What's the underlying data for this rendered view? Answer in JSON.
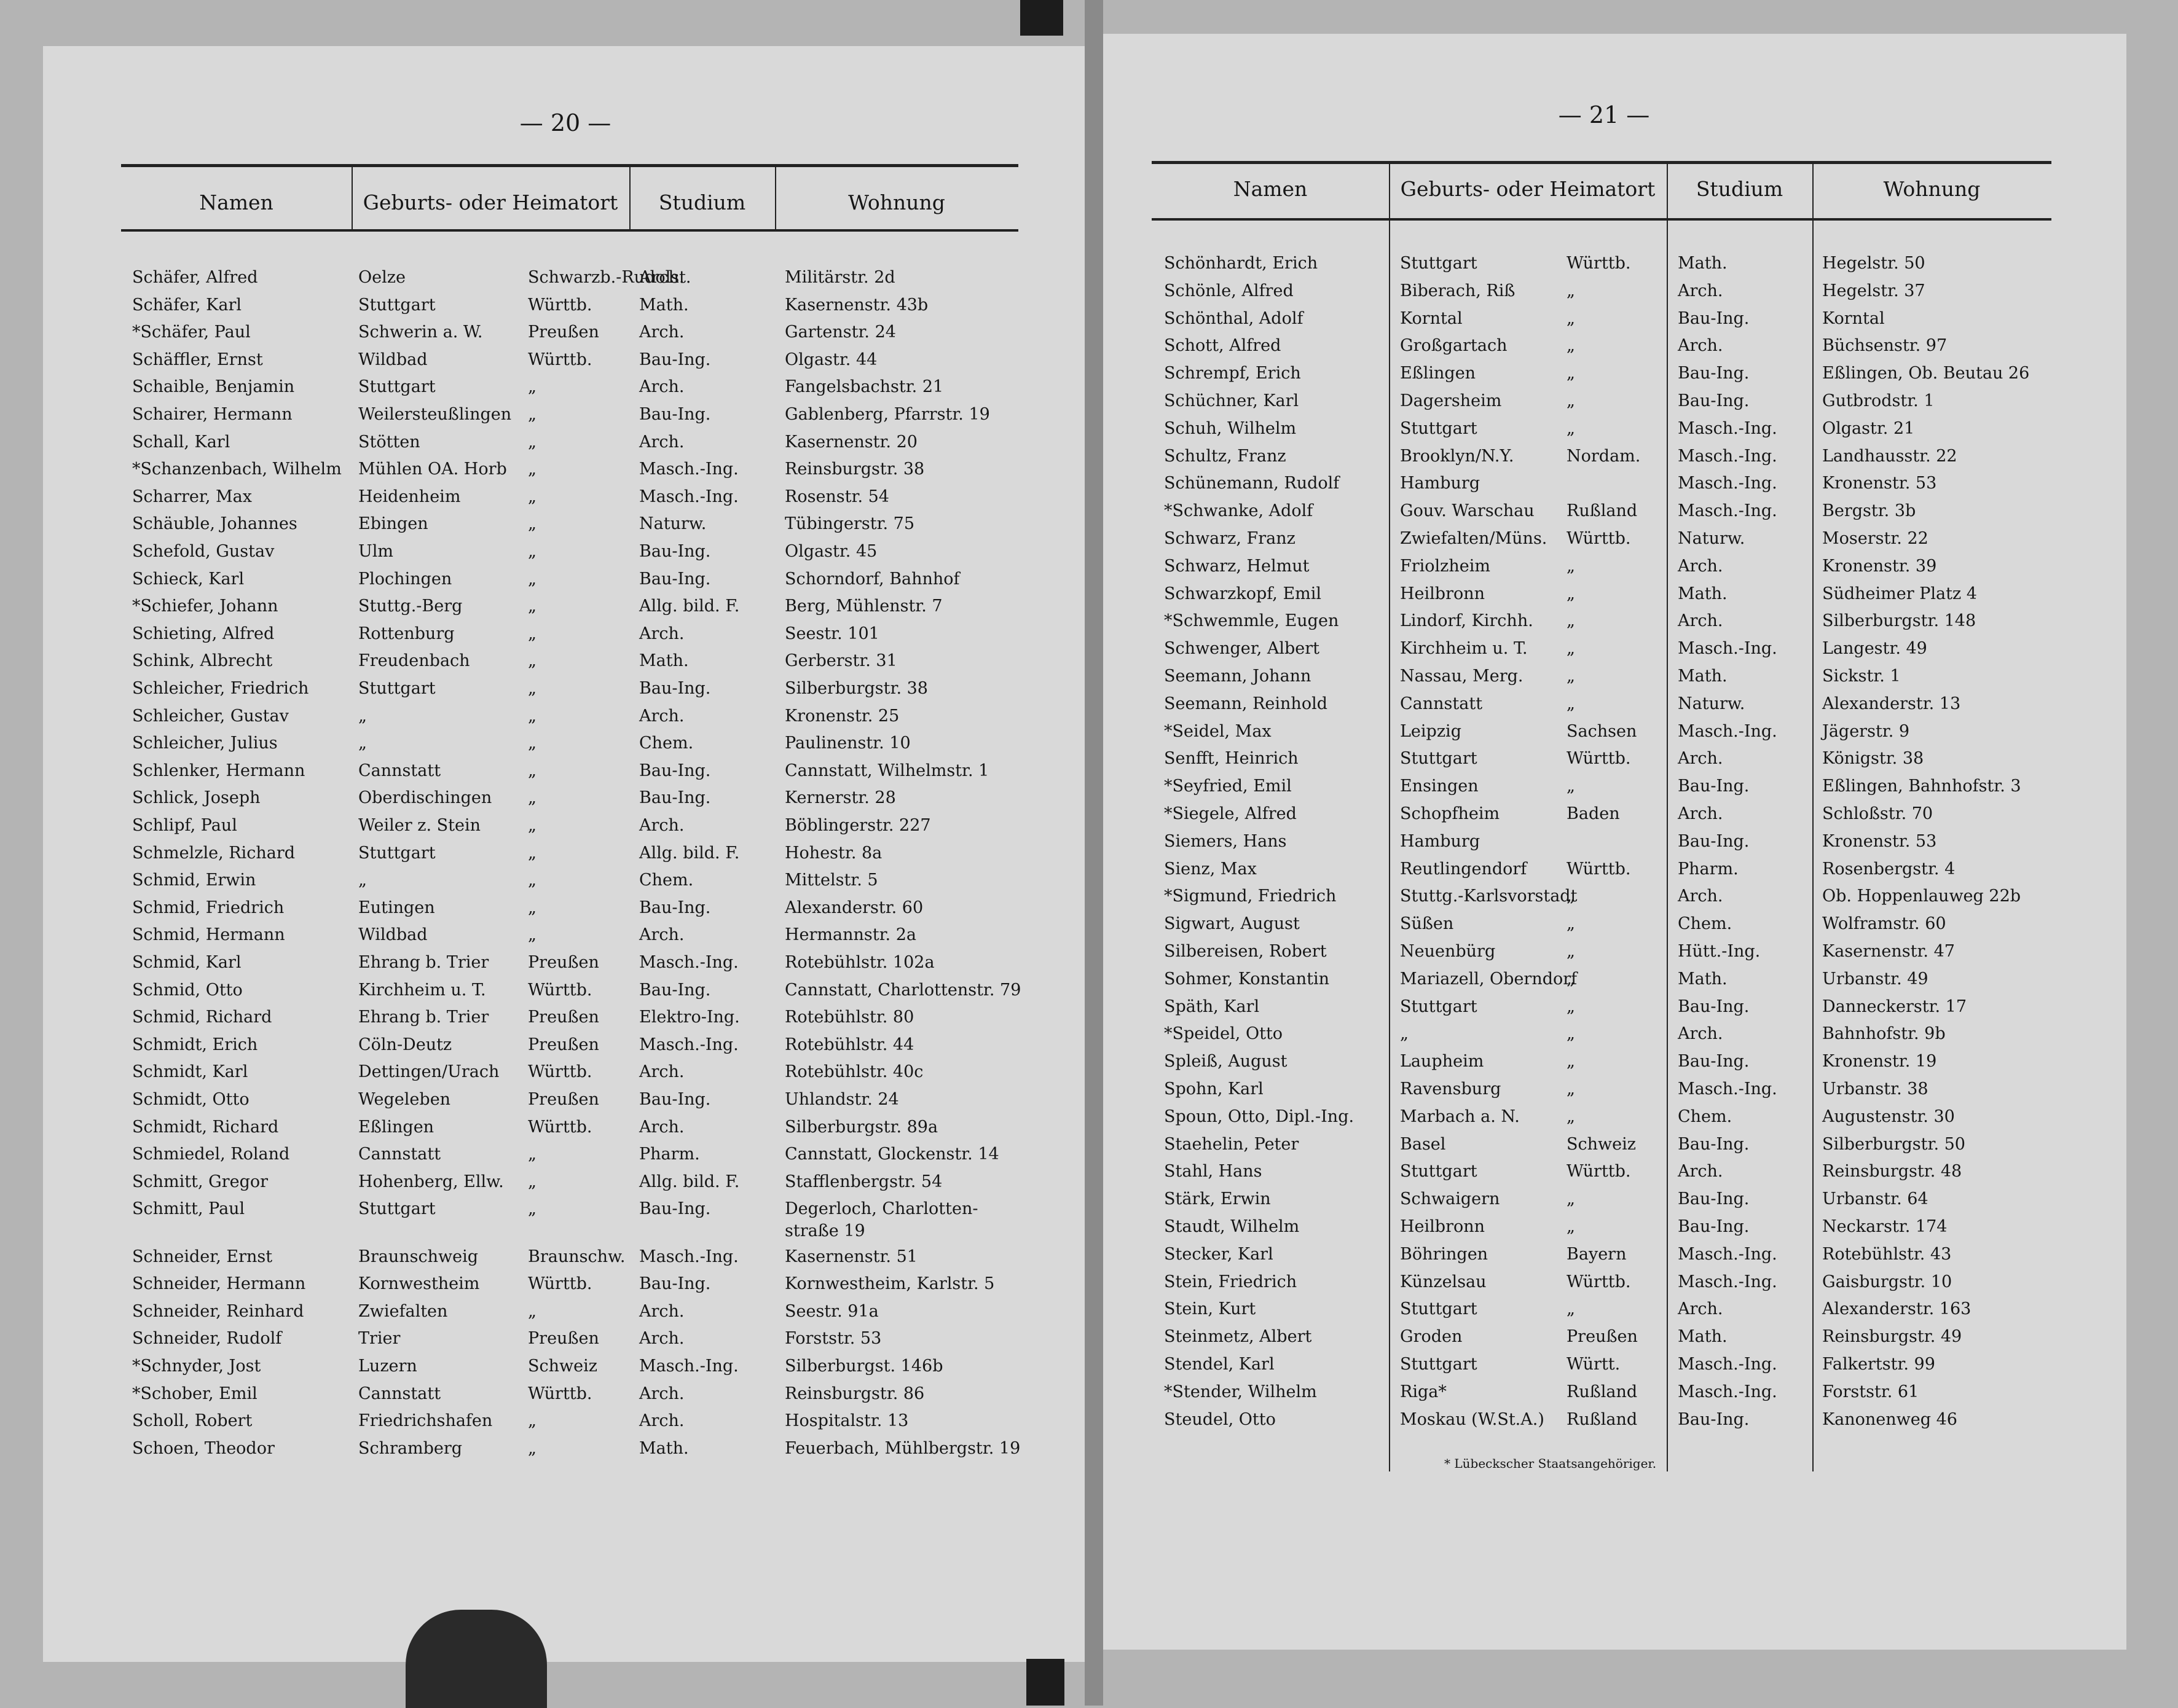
{
  "pages": [
    {
      "page_number": "— 20 —",
      "headers": [
        "Namen",
        "Geburts- oder Heimatort",
        "Studium",
        "Wohnung"
      ],
      "rows": [
        [
          "Schäfer, Alfred",
          "Oelze",
          "Schwarzb.-Rudolst.",
          "Arch.",
          "Militärstr. 2d"
        ],
        [
          "Schäfer, Karl",
          "Stuttgart",
          "Württb.",
          "Math.",
          "Kasernenstr. 43b"
        ],
        [
          "*Schäfer, Paul",
          "Schwerin a. W.",
          "Preußen",
          "Arch.",
          "Gartenstr. 24"
        ],
        [
          "Schäffler, Ernst",
          "Wildbad",
          "Württb.",
          "Bau-Ing.",
          "Olgastr. 44"
        ],
        [
          "Schaible, Benjamin",
          "Stuttgart",
          "„",
          "Arch.",
          "Fangelsbachstr. 21"
        ],
        [
          "Schairer, Hermann",
          "Weilersteußlingen",
          "„",
          "Bau-Ing.",
          "Gablenberg, Pfarrstr. 19"
        ],
        [
          "Schall, Karl",
          "Stötten",
          "„",
          "Arch.",
          "Kasernenstr. 20"
        ],
        [
          "*Schanzenbach, Wilhelm",
          "Mühlen OA. Horb",
          "„",
          "Masch.-Ing.",
          "Reinsburgstr. 38"
        ],
        [
          "Scharrer, Max",
          "Heidenheim",
          "„",
          "Masch.-Ing.",
          "Rosenstr. 54"
        ],
        [
          "Schäuble, Johannes",
          "Ebingen",
          "„",
          "Naturw.",
          "Tübingerstr. 75"
        ],
        [
          "Schefold, Gustav",
          "Ulm",
          "„",
          "Bau-Ing.",
          "Olgastr. 45"
        ],
        [
          "Schieck, Karl",
          "Plochingen",
          "„",
          "Bau-Ing.",
          "Schorndorf, Bahnhof"
        ],
        [
          "*Schiefer, Johann",
          "Stuttg.-Berg",
          "„",
          "Allg. bild. F.",
          "Berg, Mühlenstr. 7"
        ],
        [
          "Schieting, Alfred",
          "Rottenburg",
          "„",
          "Arch.",
          "Seestr. 101"
        ],
        [
          "Schink, Albrecht",
          "Freudenbach",
          "„",
          "Math.",
          "Gerberstr. 31"
        ],
        [
          "Schleicher, Friedrich",
          "Stuttgart",
          "„",
          "Bau-Ing.",
          "Silberburgstr. 38"
        ],
        [
          "Schleicher, Gustav",
          "„",
          "„",
          "Arch.",
          "Kronenstr. 25"
        ],
        [
          "Schleicher, Julius",
          "„",
          "„",
          "Chem.",
          "Paulinenstr. 10"
        ],
        [
          "Schlenker, Hermann",
          "Cannstatt",
          "„",
          "Bau-Ing.",
          "Cannstatt, Wilhelmstr. 1"
        ],
        [
          "Schlick, Joseph",
          "Oberdischingen",
          "„",
          "Bau-Ing.",
          "Kernerstr. 28"
        ],
        [
          "Schlipf, Paul",
          "Weiler z. Stein",
          "„",
          "Arch.",
          "Böblingerstr. 227"
        ],
        [
          "Schmelzle, Richard",
          "Stuttgart",
          "„",
          "Allg. bild. F.",
          "Hohestr. 8a"
        ],
        [
          "Schmid, Erwin",
          "„",
          "„",
          "Chem.",
          "Mittelstr. 5"
        ],
        [
          "Schmid, Friedrich",
          "Eutingen",
          "„",
          "Bau-Ing.",
          "Alexanderstr. 60"
        ],
        [
          "Schmid, Hermann",
          "Wildbad",
          "„",
          "Arch.",
          "Hermannstr. 2a"
        ],
        [
          "Schmid, Karl",
          "Ehrang b. Trier",
          "Preußen",
          "Masch.-Ing.",
          "Rotebühlstr. 102a"
        ],
        [
          "Schmid, Otto",
          "Kirchheim u. T.",
          "Württb.",
          "Bau-Ing.",
          "Cannstatt, Charlottenstr. 79"
        ],
        [
          "Schmid, Richard",
          "Ehrang b. Trier",
          "Preußen",
          "Elektro-Ing.",
          "Rotebühlstr. 80"
        ],
        [
          "Schmidt, Erich",
          "Cöln-Deutz",
          "Preußen",
          "Masch.-Ing.",
          "Rotebühlstr. 44"
        ],
        [
          "Schmidt, Karl",
          "Dettingen/Urach",
          "Württb.",
          "Arch.",
          "Rotebühlstr. 40c"
        ],
        [
          "Schmidt, Otto",
          "Wegeleben",
          "Preußen",
          "Bau-Ing.",
          "Uhlandstr. 24"
        ],
        [
          "Schmidt, Richard",
          "Eßlingen",
          "Württb.",
          "Arch.",
          "Silberburgstr. 89a"
        ],
        [
          "Schmiedel, Roland",
          "Cannstatt",
          "„",
          "Pharm.",
          "Cannstatt, Glockenstr. 14"
        ],
        [
          "Schmitt, Gregor",
          "Hohenberg, Ellw.",
          "„",
          "Allg. bild. F.",
          "Stafflenbergstr. 54"
        ],
        [
          "Schmitt, Paul",
          "Stuttgart",
          "„",
          "Bau-Ing.",
          "Degerloch, Charlotten-\nstraße 19"
        ],
        [
          "Schneider, Ernst",
          "Braunschweig",
          "Braunschw.",
          "Masch.-Ing.",
          "Kasernenstr. 51"
        ],
        [
          "Schneider, Hermann",
          "Kornwestheim",
          "Württb.",
          "Bau-Ing.",
          "Kornwestheim, Karlstr. 5"
        ],
        [
          "Schneider, Reinhard",
          "Zwiefalten",
          "„",
          "Arch.",
          "Seestr. 91a"
        ],
        [
          "Schneider, Rudolf",
          "Trier",
          "Preußen",
          "Arch.",
          "Forststr. 53"
        ],
        [
          "*Schnyder, Jost",
          "Luzern",
          "Schweiz",
          "Masch.-Ing.",
          "Silberburgst. 146b"
        ],
        [
          "*Schober, Emil",
          "Cannstatt",
          "Württb.",
          "Arch.",
          "Reinsburgstr. 86"
        ],
        [
          "Scholl, Robert",
          "Friedrichshafen",
          "„",
          "Arch.",
          "Hospitalstr. 13"
        ],
        [
          "Schoen, Theodor",
          "Schramberg",
          "„",
          "Math.",
          "Feuerbach, Mühlbergstr. 19"
        ]
      ]
    },
    {
      "page_number": "— 21 —",
      "headers": [
        "Namen",
        "Geburts- oder Heimatort",
        "Studium",
        "Wohnung"
      ],
      "rows": [
        [
          "Schönhardt, Erich",
          "Stuttgart",
          "Württb.",
          "Math.",
          "Hegelstr. 50"
        ],
        [
          "Schönle, Alfred",
          "Biberach, Riß",
          "„",
          "Arch.",
          "Hegelstr. 37"
        ],
        [
          "Schönthal, Adolf",
          "Korntal",
          "„",
          "Bau-Ing.",
          "Korntal"
        ],
        [
          "Schott, Alfred",
          "Großgartach",
          "„",
          "Arch.",
          "Büchsenstr. 97"
        ],
        [
          "Schrempf, Erich",
          "Eßlingen",
          "„",
          "Bau-Ing.",
          "Eßlingen, Ob. Beutau 26"
        ],
        [
          "Schüchner, Karl",
          "Dagersheim",
          "„",
          "Bau-Ing.",
          "Gutbrodstr. 1"
        ],
        [
          "Schuh, Wilhelm",
          "Stuttgart",
          "„",
          "Masch.-Ing.",
          "Olgastr. 21"
        ],
        [
          "Schultz, Franz",
          "Brooklyn/N.Y.",
          "Nordam.",
          "Masch.-Ing.",
          "Landhausstr. 22"
        ],
        [
          "Schünemann, Rudolf",
          "Hamburg",
          null,
          "Masch.-Ing.",
          "Kronenstr. 53"
        ],
        [
          "*Schwanke, Adolf",
          "Gouv. Warschau",
          "Rußland",
          "Masch.-Ing.",
          "Bergstr. 3b"
        ],
        [
          "Schwarz, Franz",
          "Zwiefalten/Müns.",
          "Württb.",
          "Naturw.",
          "Moserstr. 22"
        ],
        [
          "Schwarz, Helmut",
          "Friolzheim",
          "„",
          "Arch.",
          "Kronenstr. 39"
        ],
        [
          "Schwarzkopf, Emil",
          "Heilbronn",
          "„",
          "Math.",
          "Südheimer Platz 4"
        ],
        [
          "*Schwemmle, Eugen",
          "Lindorf, Kirchh.",
          "„",
          "Arch.",
          "Silberburgstr. 148"
        ],
        [
          "Schwenger, Albert",
          "Kirchheim u. T.",
          "„",
          "Masch.-Ing.",
          "Langestr. 49"
        ],
        [
          "Seemann, Johann",
          "Nassau, Merg.",
          "„",
          "Math.",
          "Sickstr. 1"
        ],
        [
          "Seemann, Reinhold",
          "Cannstatt",
          "„",
          "Naturw.",
          "Alexanderstr. 13"
        ],
        [
          "*Seidel, Max",
          "Leipzig",
          "Sachsen",
          "Masch.-Ing.",
          "Jägerstr. 9"
        ],
        [
          "Senfft, Heinrich",
          "Stuttgart",
          "Württb.",
          "Arch.",
          "Königstr. 38"
        ],
        [
          "*Seyfried, Emil",
          "Ensingen",
          "„",
          "Bau-Ing.",
          "Eßlingen, Bahnhofstr. 3"
        ],
        [
          "*Siegele, Alfred",
          "Schopfheim",
          "Baden",
          "Arch.",
          "Schloßstr. 70"
        ],
        [
          "Siemers, Hans",
          "Hamburg",
          null,
          "Bau-Ing.",
          "Kronenstr. 53"
        ],
        [
          "Sienz, Max",
          "Reutlingendorf",
          "Württb.",
          "Pharm.",
          "Rosenbergstr. 4"
        ],
        [
          "*Sigmund, Friedrich",
          "Stuttg.-Karlsvorstadt",
          "„",
          "Arch.",
          "Ob. Hoppenlauweg 22b"
        ],
        [
          "Sigwart, August",
          "Süßen",
          "„",
          "Chem.",
          "Wolframstr. 60"
        ],
        [
          "Silbereisen, Robert",
          "Neuenbürg",
          "„",
          "Hütt.-Ing.",
          "Kasernenstr. 47"
        ],
        [
          "Sohmer, Konstantin",
          "Mariazell, Oberndorf",
          "„",
          "Math.",
          "Urbanstr. 49"
        ],
        [
          "Späth, Karl",
          "Stuttgart",
          "„",
          "Bau-Ing.",
          "Danneckerstr. 17"
        ],
        [
          "*Speidel, Otto",
          "„",
          "„",
          "Arch.",
          "Bahnhofstr. 9b"
        ],
        [
          "Spleiß, August",
          "Laupheim",
          "„",
          "Bau-Ing.",
          "Kronenstr. 19"
        ],
        [
          "Spohn, Karl",
          "Ravensburg",
          "„",
          "Masch.-Ing.",
          "Urbanstr. 38"
        ],
        [
          "Spoun, Otto, Dipl.-Ing.",
          "Marbach a. N.",
          "„",
          "Chem.",
          "Augustenstr. 30"
        ],
        [
          "Staehelin, Peter",
          "Basel",
          "Schweiz",
          "Bau-Ing.",
          "Silberburgstr. 50"
        ],
        [
          "Stahl, Hans",
          "Stuttgart",
          "Württb.",
          "Arch.",
          "Reinsburgstr. 48"
        ],
        [
          "Stärk, Erwin",
          "Schwaigern",
          "„",
          "Bau-Ing.",
          "Urbanstr. 64"
        ],
        [
          "Staudt, Wilhelm",
          "Heilbronn",
          "„",
          "Bau-Ing.",
          "Neckarstr. 174"
        ],
        [
          "Stecker, Karl",
          "Böhringen",
          "Bayern",
          "Masch.-Ing.",
          "Rotebühlstr. 43"
        ],
        [
          "Stein, Friedrich",
          "Künzelsau",
          "Württb.",
          "Masch.-Ing.",
          "Gaisburgstr. 10"
        ],
        [
          "Stein, Kurt",
          "Stuttgart",
          "„",
          "Arch.",
          "Alexanderstr. 163"
        ],
        [
          "Steinmetz, Albert",
          "Groden",
          "Preußen",
          "Math.",
          "Reinsburgstr. 49"
        ],
        [
          "Stendel, Karl",
          "Stuttgart",
          "Württ.",
          "Masch.-Ing.",
          "Falkertstr. 99"
        ],
        [
          "*Stender, Wilhelm",
          "Riga*",
          "Rußland",
          "Masch.-Ing.",
          "Forststr. 61"
        ],
        [
          "Steudel, Otto",
          "Moskau (W.St.A.)",
          "Rußland",
          "Bau-Ing.",
          "Kanonenweg 46"
        ]
      ],
      "footnote": "* Lübeckscher Staatsangehöriger."
    }
  ]
}
